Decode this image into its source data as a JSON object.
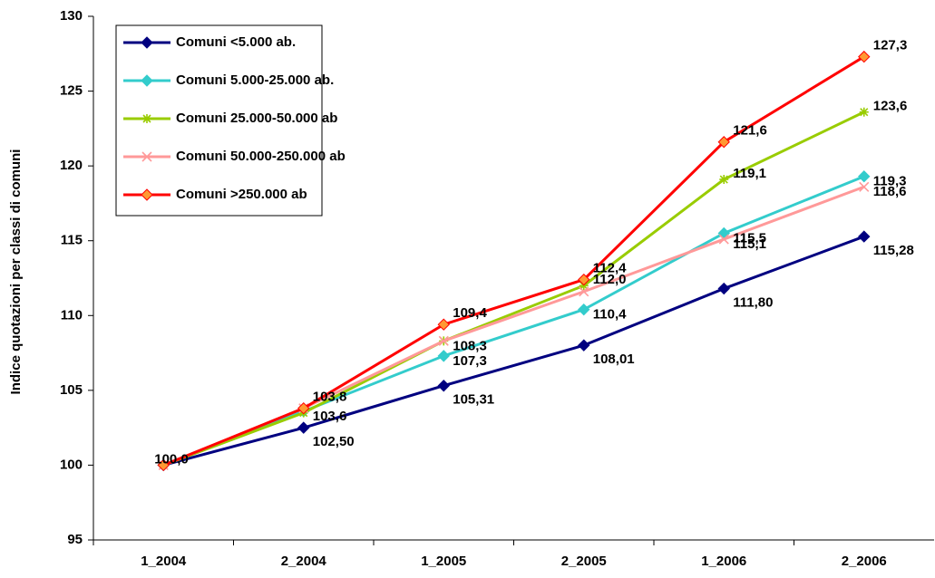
{
  "chart_data": {
    "type": "line",
    "y_label": "Indice quotazioni per classi di comuni",
    "categories": [
      "1_2004",
      "2_2004",
      "1_2005",
      "2_2005",
      "1_2006",
      "2_2006"
    ],
    "ylim": [
      95,
      130
    ],
    "yticks": [
      95,
      100,
      105,
      110,
      115,
      120,
      125,
      130
    ],
    "grid": false,
    "legend": "top-left",
    "series": [
      {
        "name": "Comuni <5.000 ab.",
        "color": "#000080",
        "marker": "diamond",
        "values": [
          100,
          102.5,
          105.31,
          108.01,
          111.8,
          115.28
        ],
        "value_labels": [
          null,
          "102,50",
          "105,31",
          "108,01",
          "111,80",
          "115,28"
        ]
      },
      {
        "name": "Comuni 5.000-25.000 ab.",
        "color": "#33cccc",
        "marker": "diamond",
        "values": [
          100,
          103.6,
          107.3,
          110.4,
          115.5,
          119.3
        ],
        "value_labels": [
          null,
          "103,6",
          "107,3",
          "110,4",
          "115,5",
          "119,3"
        ]
      },
      {
        "name": "Comuni 25.000-50.000 ab",
        "color": "#99cc00",
        "marker": "star",
        "values": [
          100,
          103.5,
          108.3,
          112.0,
          119.1,
          123.6
        ],
        "value_labels": [
          null,
          null,
          null,
          "112,0",
          "119,1",
          "123,6"
        ]
      },
      {
        "name": "Comuni 50.000-250.000 ab",
        "color": "#ff9999",
        "marker": "cross",
        "values": [
          100,
          103.8,
          108.3,
          111.6,
          115.1,
          118.6
        ],
        "value_labels": [
          null,
          null,
          "108,3",
          null,
          "115,1",
          "118,6"
        ]
      },
      {
        "name": "Comuni >250.000 ab",
        "color": "#ff0000",
        "marker": "diamond-orange",
        "values": [
          100,
          103.8,
          109.4,
          112.4,
          121.6,
          127.3
        ],
        "value_labels": [
          "100,0",
          "103,8",
          "109,4",
          "112,4",
          "121,6",
          "127,3"
        ]
      }
    ]
  }
}
